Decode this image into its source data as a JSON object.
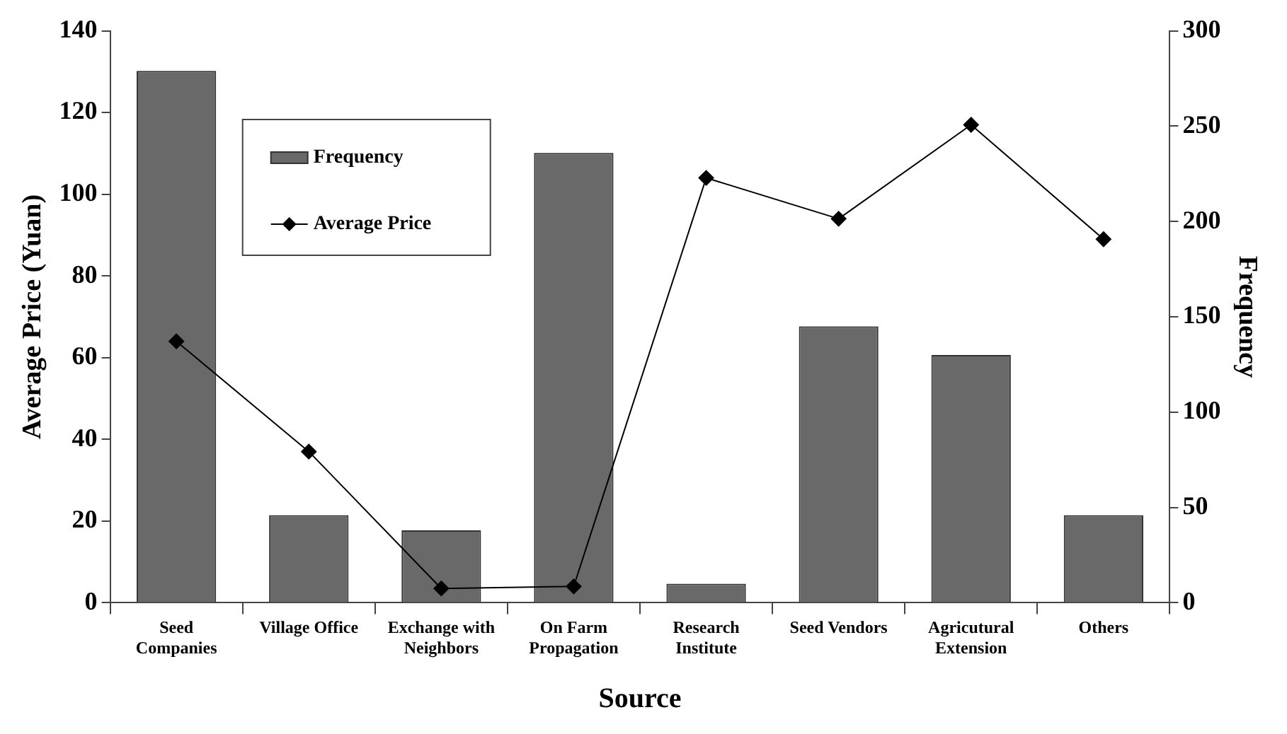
{
  "chart_data": {
    "type": "bar",
    "xlabel": "Source",
    "ylabel": "Average Price (Yuan)",
    "y2label": "Frequency",
    "categories": [
      "Seed Companies",
      "Village Office",
      "Exchange with Neighbors",
      "On Farm Propagation",
      "Research Institute",
      "Seed Vendors",
      "Agricutural Extension",
      "Others"
    ],
    "series": [
      {
        "name": "Frequency",
        "axis": "y2",
        "color": "#696969",
        "values": [
          279,
          46,
          38,
          236,
          10,
          145,
          130,
          46
        ]
      },
      {
        "name": "Average Price",
        "type": "line",
        "color": "#000000",
        "marker": "diamond",
        "values": [
          64,
          37,
          3.5,
          4,
          104,
          94,
          117,
          89
        ]
      }
    ],
    "ylim": [
      0,
      140
    ],
    "yticks": [
      0,
      20,
      40,
      60,
      80,
      100,
      120,
      140
    ],
    "y2lim": [
      0,
      300
    ],
    "y2ticks": [
      0,
      50,
      100,
      150,
      200,
      250,
      300
    ],
    "grid": false,
    "legend": "top left"
  }
}
